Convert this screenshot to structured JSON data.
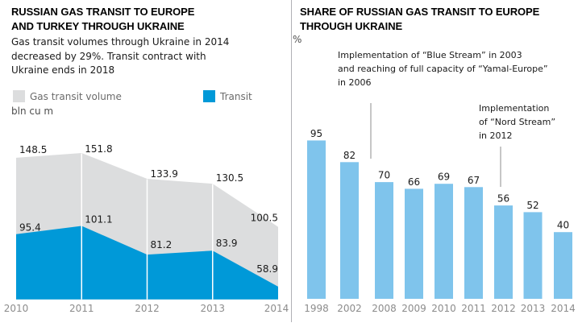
{
  "page": {
    "background": "#ffffff",
    "divider_color": "#b0b0b5"
  },
  "left_panel": {
    "title_lines": [
      "RUSSIAN GAS TRANSIT TO EUROPE",
      "AND TURKEY THROUGH UKRAINE"
    ],
    "subtitle_lines": [
      "Gas transit volumes through Ukraine in 2014",
      "decreased by 29%. Transit contract with",
      "Ukraine ends in 2018"
    ],
    "unit_label": "bln cu m",
    "legend": [
      {
        "label": "Gas transit volume",
        "color": "#dcddde"
      },
      {
        "label": "Transit",
        "color": "#0099d8"
      }
    ]
  },
  "right_panel": {
    "title_lines": [
      "SHARE OF RUSSIAN GAS TRANSIT TO EUROPE",
      "THROUGH UKRAINE"
    ],
    "unit_label": "%",
    "annotations": [
      {
        "lines": [
          "Implementation of “Blue Stream” in 2003",
          "and reaching of full capacity of “Yamal-Europe”",
          "in 2006"
        ]
      },
      {
        "lines": [
          "Implementation",
          "of “Nord Stream”",
          "in 2012"
        ]
      }
    ]
  },
  "chart_data": [
    {
      "type": "area",
      "title": "RUSSIAN GAS TRANSIT TO EUROPE AND TURKEY THROUGH UKRAINE",
      "subtitle": "Gas transit volumes through Ukraine in 2014 decreased by 29%. Transit contract with Ukraine ends in 2018",
      "ylabel": "bln cu m",
      "categories": [
        "2010",
        "2011",
        "2012",
        "2013",
        "2014"
      ],
      "series": [
        {
          "name": "Gas transit volume",
          "color": "#dcddde",
          "values": [
            148.5,
            151.8,
            133.9,
            130.5,
            100.5
          ]
        },
        {
          "name": "Transit",
          "color": "#0099d8",
          "values": [
            95.4,
            101.1,
            81.2,
            83.9,
            58.9
          ]
        }
      ],
      "y_axis_truncated_at": 50,
      "grid": false,
      "legend_position": "top",
      "label_color": "#1a1a1a",
      "axis_label_color": "#8c8c8c"
    },
    {
      "type": "bar",
      "title": "SHARE OF RUSSIAN GAS TRANSIT TO EUROPE THROUGH UKRAINE",
      "ylabel": "%",
      "categories": [
        "1998",
        "2002",
        "2008",
        "2009",
        "2010",
        "2011",
        "2012",
        "2013",
        "2014"
      ],
      "values": [
        95,
        82,
        70,
        66,
        69,
        67,
        56,
        52,
        40
      ],
      "bar_color": "#7fc4ec",
      "ylim": [
        0,
        100
      ],
      "grid": false,
      "label_color": "#1a1a1a",
      "axis_label_color": "#8c8c8c",
      "annotations": [
        "Implementation of “Blue Stream” in 2003 and reaching of full capacity of “Yamal-Europe” in 2006",
        "Implementation of “Nord Stream” in 2012"
      ],
      "annotation_line_color": "#8c8c8c"
    }
  ]
}
